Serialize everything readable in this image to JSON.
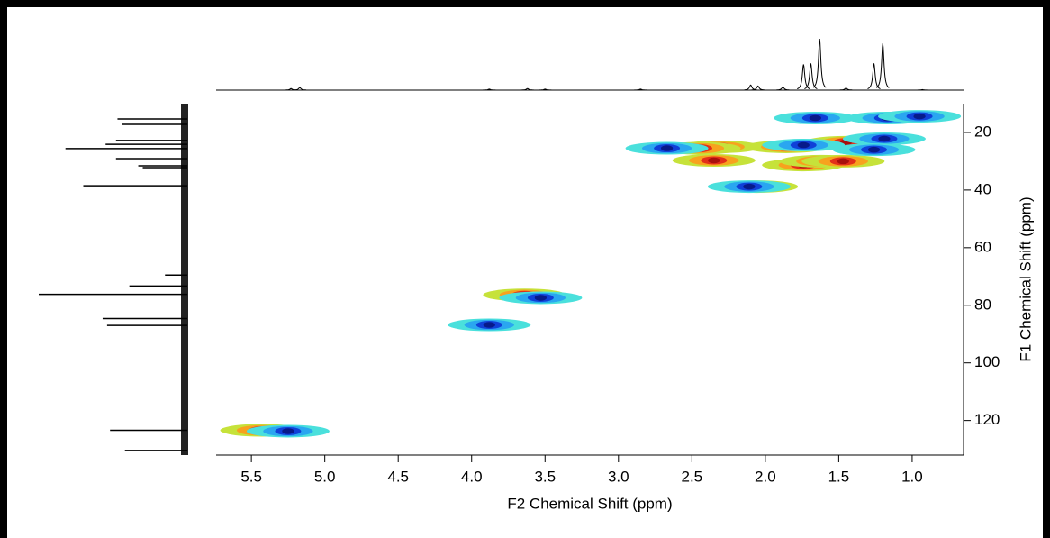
{
  "chart_data": {
    "type": "nmr2d",
    "xlabel": "F2 Chemical Shift (ppm)",
    "ylabel": "F1 Chemical Shift (ppm)",
    "xlim": [
      5.74,
      0.65
    ],
    "ylim": [
      10,
      132
    ],
    "xticks": [
      {
        "value": 5.5,
        "label": "5.5"
      },
      {
        "value": 5,
        "label": "5.0"
      },
      {
        "value": 4.5,
        "label": "4.5"
      },
      {
        "value": 4,
        "label": "4.0"
      },
      {
        "value": 3.5,
        "label": "3.5"
      },
      {
        "value": 3,
        "label": "3.0"
      },
      {
        "value": 2.5,
        "label": "2.5"
      },
      {
        "value": 2,
        "label": "2.0"
      },
      {
        "value": 1.5,
        "label": "1.5"
      },
      {
        "value": 1,
        "label": "1.0"
      }
    ],
    "yticks": [
      20,
      40,
      60,
      80,
      100,
      120
    ],
    "series": [
      {
        "colors": [
          "#c6e23a",
          "#f7a21e",
          "#e2301a",
          "#a8100c"
        ],
        "x": [
          2.31,
          2.45,
          1.86,
          1.45,
          1.74,
          1.62,
          1.47,
          2.35,
          2.06,
          3.64,
          5.43
        ],
        "values": [
          25,
          25.5,
          25,
          23.4,
          31.3,
          30,
          30,
          29.7,
          38.8,
          76.4,
          123.4
        ]
      },
      {
        "colors": [
          "#4ae0dc",
          "#2aa6f0",
          "#1040d8",
          "#081a8a"
        ],
        "x": [
          1.66,
          1.74,
          1.19,
          1.26,
          2.67,
          2.11,
          1.17,
          0.95,
          3.53,
          3.88,
          5.25
        ],
        "values": [
          15,
          24.4,
          22.2,
          26,
          25.5,
          38.8,
          15,
          14.4,
          77.4,
          86.8,
          123.7
        ]
      }
    ],
    "f2_projection": {
      "x": [
        5.23,
        5.17,
        3.88,
        3.62,
        3.5,
        2.85,
        2.1,
        2.05,
        1.88,
        1.74,
        1.69,
        1.63,
        1.45,
        1.26,
        1.2,
        0.93
      ],
      "values": [
        3,
        5,
        2,
        3,
        2,
        2,
        10,
        8,
        6,
        50,
        52,
        100,
        4,
        52,
        91,
        1
      ]
    },
    "f1_projection": {
      "y": [
        15.3,
        17.2,
        22.8,
        24.1,
        25.6,
        29.1,
        31.6,
        32.2,
        38.5,
        69.5,
        73.3,
        76.2,
        84.6,
        87,
        123.4,
        130.4
      ],
      "values": [
        47,
        44,
        48,
        55,
        82,
        48,
        33,
        30,
        70,
        15,
        39,
        100,
        57,
        54,
        52,
        42
      ]
    }
  }
}
